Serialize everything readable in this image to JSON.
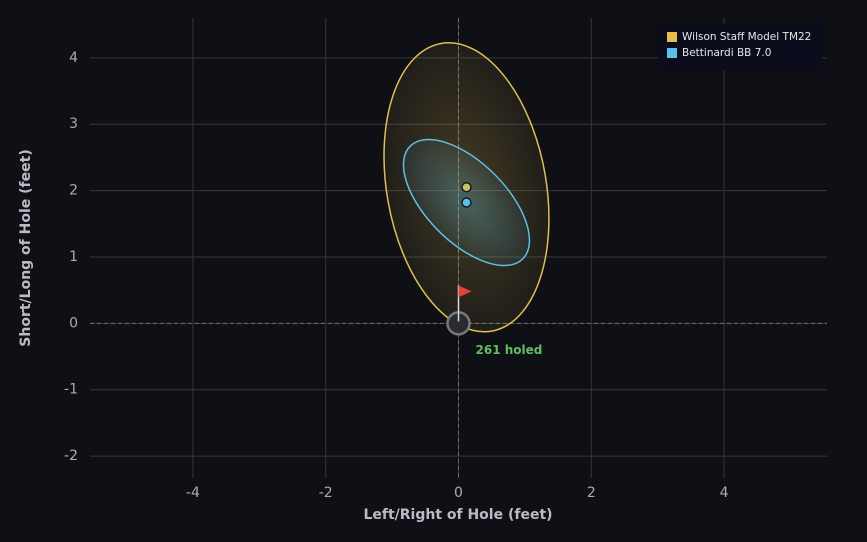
{
  "chart_data": {
    "type": "scatter",
    "xlabel": "Left/Right of Hole (feet)",
    "ylabel": "Short/Long of Hole (feet)",
    "xlim": [
      -5.55,
      5.55
    ],
    "ylim": [
      -2.33,
      4.6
    ],
    "xticks": [
      -4,
      -2,
      0,
      2,
      4
    ],
    "yticks": [
      -2,
      -1,
      0,
      1,
      2,
      3,
      4
    ],
    "grid": true,
    "legend": "upper right",
    "annotation": "261 holed",
    "series": [
      {
        "name": "Wilson Staff Model TM22",
        "color": "#e2bf4a",
        "x": [
          0.12
        ],
        "values": [
          2.05
        ],
        "ellipse": {
          "rx": 1.2,
          "ry": 2.2,
          "angle": 10
        }
      },
      {
        "name": "Bettinardi BB 7.0",
        "color": "#5bbfea",
        "x": [
          0.12
        ],
        "values": [
          1.82
        ],
        "ellipse": {
          "rx": 1.2,
          "ry": 0.6,
          "angle": -45
        }
      }
    ]
  }
}
